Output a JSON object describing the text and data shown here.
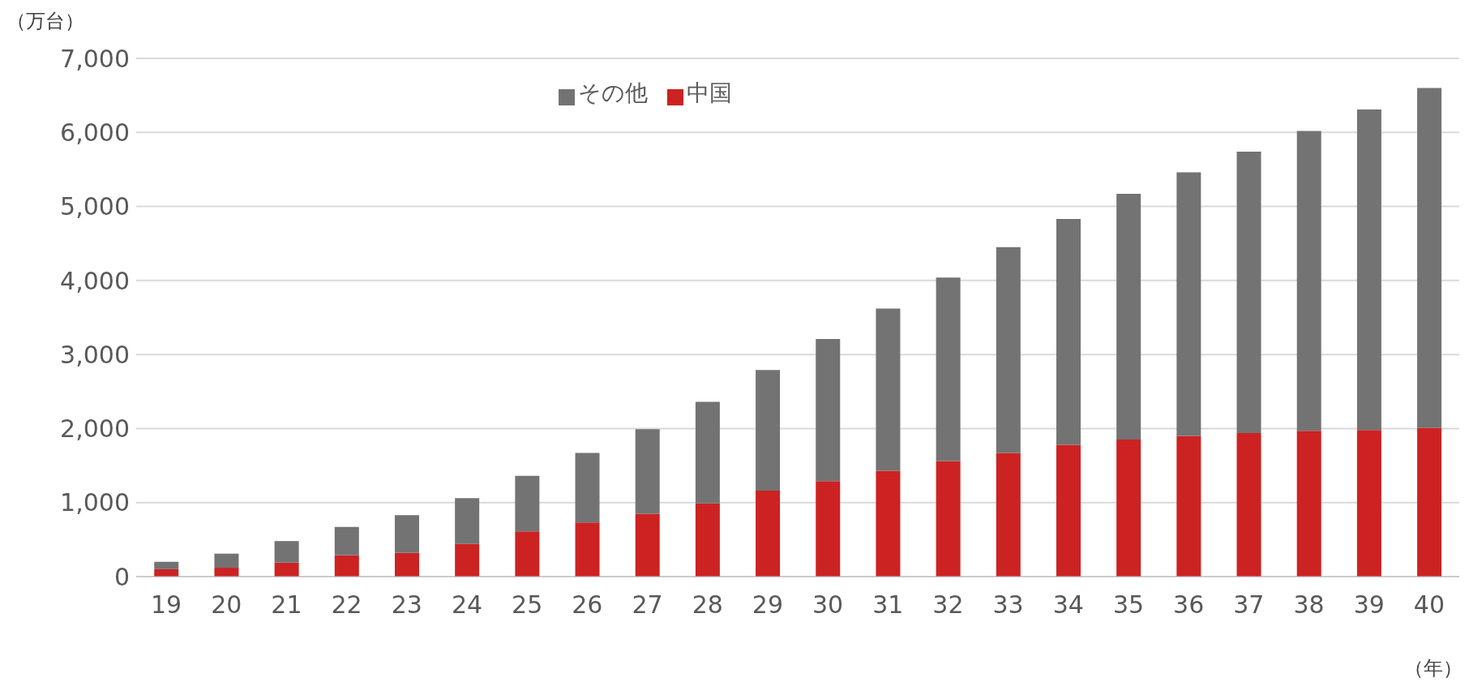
{
  "chart_data": {
    "type": "bar",
    "stacked": true,
    "ylabel": "（万台）",
    "xlabel": "（年）",
    "categories": [
      "19",
      "20",
      "21",
      "22",
      "23",
      "24",
      "25",
      "26",
      "27",
      "28",
      "29",
      "30",
      "31",
      "32",
      "33",
      "34",
      "35",
      "36",
      "37",
      "38",
      "39",
      "40"
    ],
    "series": [
      {
        "name": "中国",
        "color": "#cc2222",
        "values": [
          100,
          120,
          190,
          290,
          320,
          440,
          610,
          730,
          850,
          990,
          1160,
          1290,
          1430,
          1560,
          1670,
          1780,
          1850,
          1900,
          1940,
          1970,
          1980,
          2010
        ]
      },
      {
        "name": "その他",
        "color": "#737373",
        "values": [
          100,
          190,
          290,
          380,
          510,
          620,
          750,
          940,
          1140,
          1370,
          1630,
          1920,
          2190,
          2480,
          2780,
          3050,
          3320,
          3560,
          3800,
          4050,
          4330,
          4590
        ]
      }
    ],
    "ylim": [
      0,
      7000
    ],
    "yticks": [
      {
        "value": 0,
        "label": "0"
      },
      {
        "value": 1000,
        "label": "1,000"
      },
      {
        "value": 2000,
        "label": "2,000"
      },
      {
        "value": 3000,
        "label": "3,000"
      },
      {
        "value": 4000,
        "label": "4,000"
      },
      {
        "value": 5000,
        "label": "5,000"
      },
      {
        "value": 6000,
        "label": "6,000"
      },
      {
        "value": 7000,
        "label": "7,000"
      }
    ],
    "grid": "y",
    "legend": "top"
  }
}
